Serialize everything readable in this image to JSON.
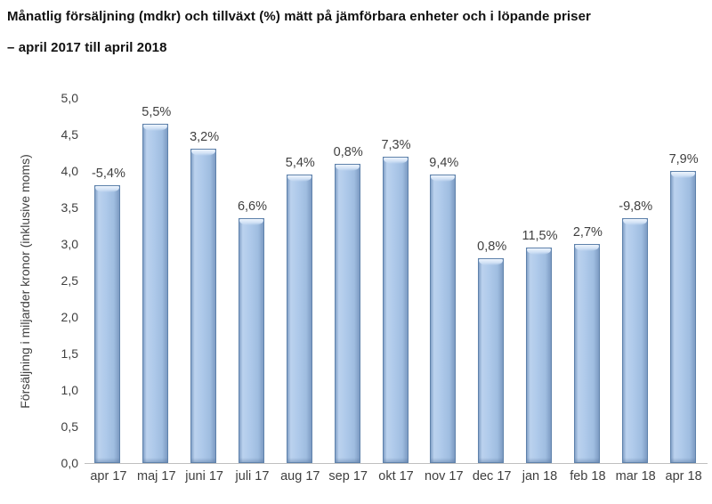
{
  "title": {
    "line1": "Månatlig försäljning (mdkr) och tillväxt (%) mätt på jämförbara enheter och i löpande priser",
    "line2": "– april 2017 till april 2018"
  },
  "chart_data": {
    "type": "bar",
    "categories": [
      "apr 17",
      "maj 17",
      "juni 17",
      "juli 17",
      "aug 17",
      "sep 17",
      "okt 17",
      "nov 17",
      "dec 17",
      "jan 18",
      "feb 18",
      "mar 18",
      "apr 18"
    ],
    "values": [
      3.8,
      4.65,
      4.3,
      3.35,
      3.95,
      4.1,
      4.2,
      3.95,
      2.8,
      2.95,
      3.0,
      3.35,
      4.0
    ],
    "growth_labels": [
      "-5,4%",
      "5,5%",
      "3,2%",
      "6,6%",
      "5,4%",
      "0,8%",
      "7,3%",
      "9,4%",
      "0,8%",
      "11,5%",
      "2,7%",
      "-9,8%",
      "7,9%"
    ],
    "title": "Månatlig försäljning (mdkr) och tillväxt (%) mätt på jämförbara enheter och i löpande priser – april 2017 till april 2018",
    "xlabel": "",
    "ylabel": "Försäljning i miljarder kronor (inklusive moms)",
    "ylim": [
      0,
      5
    ],
    "ytick_step": 0.5,
    "yticks": [
      "5,0",
      "4,5",
      "4,0",
      "3,5",
      "3,0",
      "2,5",
      "2,0",
      "1,5",
      "1,0",
      "0,5",
      "0,0"
    ],
    "grid": false,
    "legend": "none",
    "colors": {
      "bar_fill": "#aec9ea",
      "bar_edge": "#5f82ab",
      "bar_highlight": "#edf4fc",
      "axis_line": "#bfbfbf",
      "label_text": "#3f3f3f",
      "title_text": "#111111",
      "background": "#ffffff"
    }
  }
}
